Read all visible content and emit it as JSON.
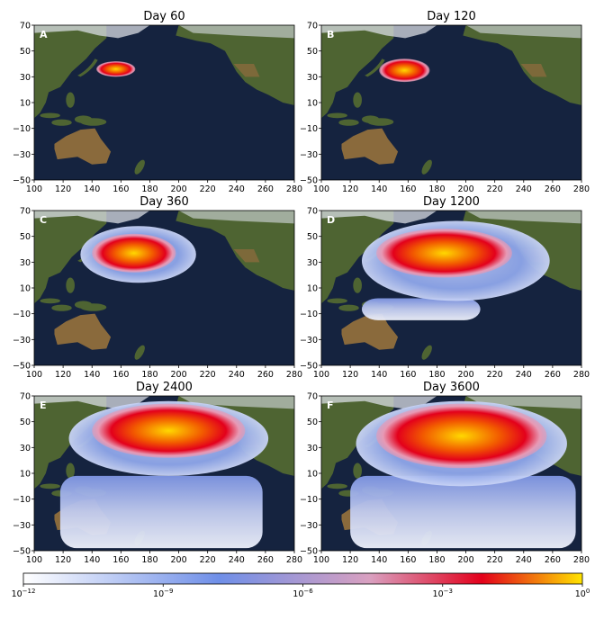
{
  "panels": [
    {
      "letter": "A",
      "title": "Day 60",
      "day": 60
    },
    {
      "letter": "B",
      "title": "Day 120",
      "day": 120
    },
    {
      "letter": "C",
      "title": "Day 360",
      "day": 360
    },
    {
      "letter": "D",
      "title": "Day 1200",
      "day": 1200
    },
    {
      "letter": "E",
      "title": "Day 2400",
      "day": 2400
    },
    {
      "letter": "F",
      "title": "Day 3600",
      "day": 3600
    }
  ],
  "axes": {
    "x_ticks": [
      "100",
      "120",
      "140",
      "160",
      "180",
      "200",
      "220",
      "240",
      "260",
      "280"
    ],
    "y_ticks": [
      "70",
      "50",
      "30",
      "10",
      "−10",
      "−30",
      "−50"
    ],
    "x_range": [
      100,
      280
    ],
    "y_range": [
      -50,
      70
    ]
  },
  "colorbar": {
    "tick_bases": [
      "10",
      "10",
      "10",
      "10",
      "10"
    ],
    "tick_exponents": [
      "−12",
      "−9",
      "−6",
      "−3",
      "0"
    ],
    "colors": [
      "#ffffff",
      "#6f8fe8",
      "#d9a0c0",
      "#e3001b",
      "#ffe400"
    ]
  },
  "map_colors": {
    "ocean": "#15233f",
    "land": "#4e6432",
    "desert": "#8a6a3c",
    "snow": "#d9dee4"
  }
}
